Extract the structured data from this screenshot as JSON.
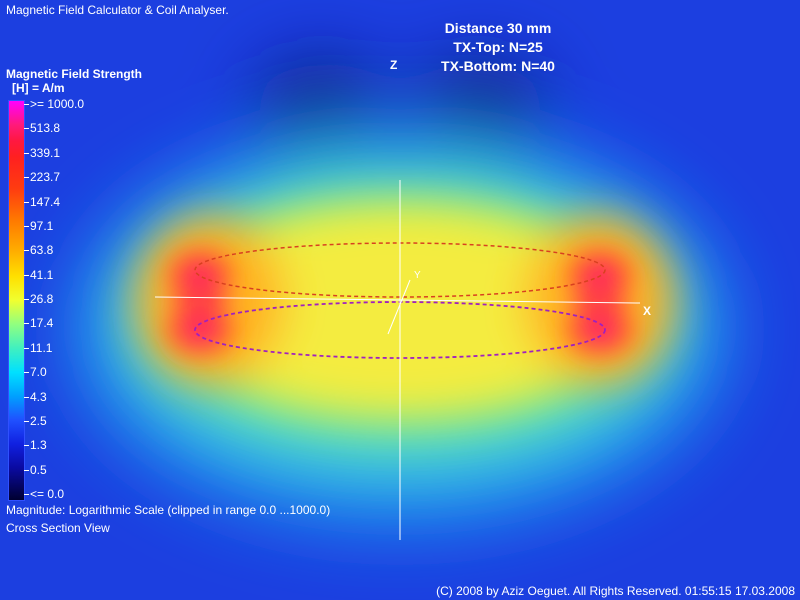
{
  "app": {
    "title": "Magnetic Field Calculator & Coil Analyser."
  },
  "info": {
    "distance": "Distance 30 mm",
    "tx_top": "TX-Top: N=25",
    "tx_bottom": "TX-Bottom: N=40"
  },
  "legend": {
    "title": "Magnetic Field Strength",
    "unit": "[H] = A/m",
    "ticks": [
      ">= 1000.0",
      "513.8",
      "339.1",
      "223.7",
      "147.4",
      "97.1",
      "63.8",
      "41.1",
      "26.8",
      "17.4",
      "11.1",
      "7.0",
      "4.3",
      "2.5",
      "1.3",
      "0.5",
      "<= 0.0"
    ]
  },
  "footer": {
    "magnitude_note": "Magnitude: Logarithmic Scale (clipped in range 0.0 ...1000.0)",
    "view": "Cross Section View",
    "copyright": "(C) 2008 by Aziz Oeguet. All Rights Reserved.  01:55:15  17.03.2008"
  },
  "axes": {
    "x": "X",
    "y": "Y",
    "z": "Z"
  },
  "colors": {
    "background_low": "#1c3fe0",
    "field_high": "#ff1e5a",
    "field_mid": "#f2f23a",
    "coil_top": "#d84020",
    "coil_bottom": "#a020c0"
  }
}
